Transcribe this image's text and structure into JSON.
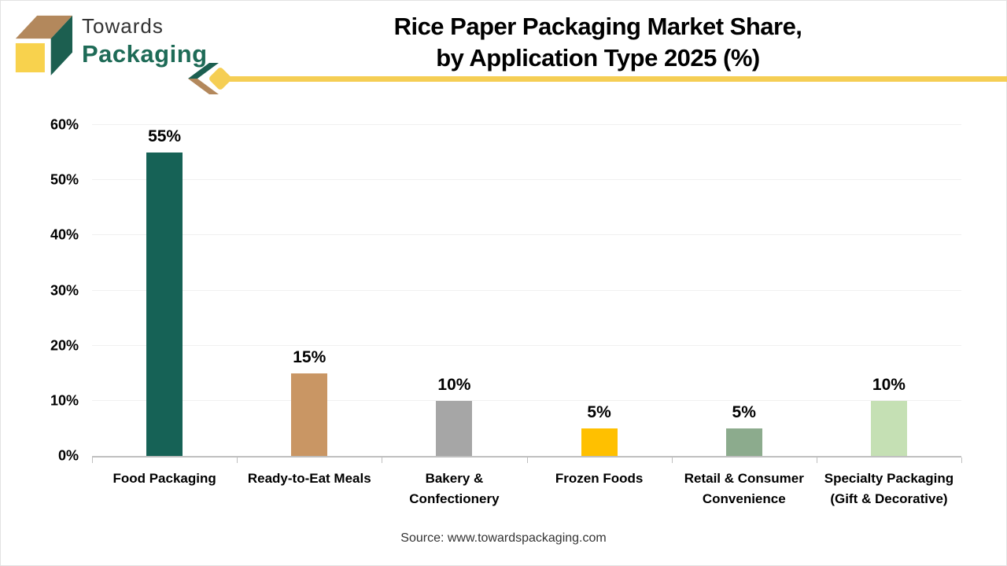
{
  "brand": {
    "line1": "Towards",
    "line2": "Packaging"
  },
  "title": {
    "line1": "Rice Paper Packaging Market Share,",
    "line2": "by Application Type 2025 (%)"
  },
  "source": "Source: www.towardspackaging.com",
  "colors": {
    "accent_yellow": "#F5CE54",
    "logo_green": "#1E6B57",
    "logo_tan": "#B3885C",
    "logo_cube_yellow": "#F8D24D",
    "axis_gray": "#BFBFBF",
    "gridline_gray": "#F0F0F0"
  },
  "chart_data": {
    "type": "bar",
    "title": "Rice Paper Packaging Market Share, by Application Type 2025 (%)",
    "categories": [
      "Food Packaging",
      "Ready-to-Eat Meals",
      "Bakery & Confectionery",
      "Frozen Foods",
      "Retail & Consumer Convenience",
      "Specialty Packaging (Gift & Decorative)"
    ],
    "category_label_lines": [
      [
        "Food Packaging"
      ],
      [
        "Ready-to-Eat Meals"
      ],
      [
        "Bakery &",
        "Confectionery"
      ],
      [
        "Frozen Foods"
      ],
      [
        "Retail & Consumer",
        "Convenience"
      ],
      [
        "Specialty Packaging",
        "(Gift & Decorative)"
      ]
    ],
    "values": [
      55,
      15,
      10,
      5,
      5,
      10
    ],
    "value_labels": [
      "55%",
      "15%",
      "10%",
      "5%",
      "5%",
      "10%"
    ],
    "bar_colors": [
      "#166256",
      "#C99664",
      "#A6A6A6",
      "#FFC000",
      "#8CAB8D",
      "#C5E0B4"
    ],
    "xlabel": "",
    "ylabel": "",
    "ylim": [
      0,
      60
    ],
    "yticks": [
      "0%",
      "10%",
      "20%",
      "30%",
      "40%",
      "50%",
      "60%"
    ],
    "grid": "horizontal-light",
    "legend": "none"
  }
}
